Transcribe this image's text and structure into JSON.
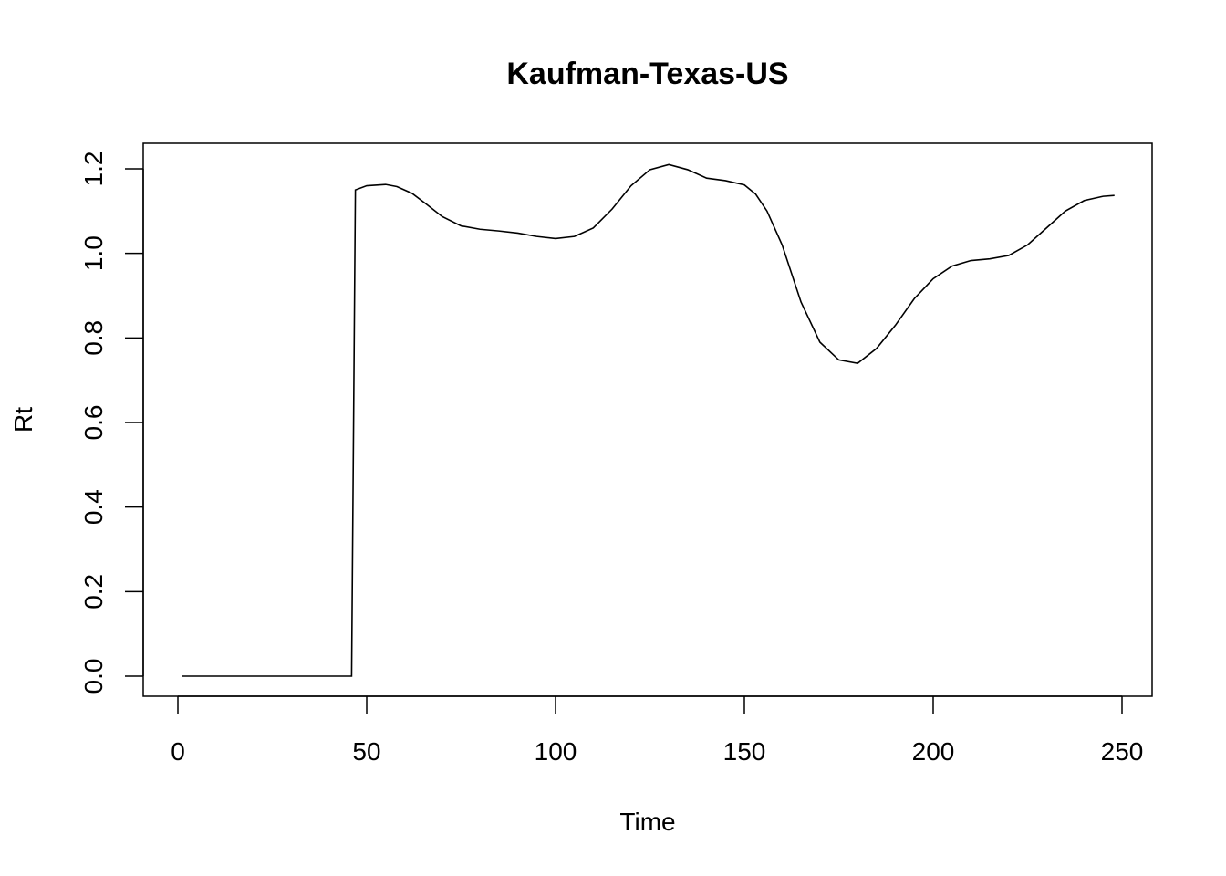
{
  "chart_data": {
    "type": "line",
    "title": "Kaufman-Texas-US",
    "xlabel": "Time",
    "ylabel": "Rt",
    "xlim": [
      1,
      248
    ],
    "ylim": [
      0,
      1.2
    ],
    "xticks": [
      "0",
      "50",
      "100",
      "150",
      "200",
      "250"
    ],
    "yticks": [
      "0.0",
      "0.2",
      "0.4",
      "0.6",
      "0.8",
      "1.0",
      "1.2"
    ],
    "grid": false,
    "series": [
      {
        "color": "#000000",
        "x": [
          1,
          10,
          20,
          30,
          40,
          46,
          47,
          50,
          55,
          58,
          62,
          66,
          70,
          75,
          80,
          85,
          90,
          95,
          100,
          105,
          110,
          115,
          120,
          125,
          130,
          135,
          140,
          145,
          150,
          153,
          156,
          160,
          165,
          170,
          175,
          180,
          185,
          190,
          195,
          200,
          205,
          210,
          215,
          220,
          225,
          230,
          235,
          240,
          245,
          248
        ],
        "y": [
          0,
          0,
          0,
          0,
          0,
          0,
          1.15,
          1.16,
          1.163,
          1.158,
          1.142,
          1.115,
          1.087,
          1.065,
          1.057,
          1.053,
          1.048,
          1.04,
          1.035,
          1.04,
          1.06,
          1.105,
          1.16,
          1.198,
          1.21,
          1.198,
          1.178,
          1.172,
          1.162,
          1.14,
          1.1,
          1.02,
          0.885,
          0.79,
          0.748,
          0.74,
          0.775,
          0.83,
          0.893,
          0.94,
          0.97,
          0.983,
          0.987,
          0.995,
          1.02,
          1.06,
          1.1,
          1.125,
          1.135,
          1.137
        ]
      }
    ]
  }
}
